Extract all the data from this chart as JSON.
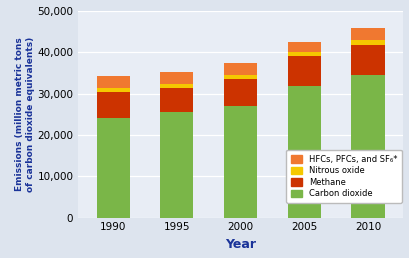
{
  "years": [
    "1990",
    "1995",
    "2000",
    "2005",
    "2010"
  ],
  "co2": [
    24200,
    25500,
    27000,
    31800,
    34500
  ],
  "methane": [
    6200,
    5800,
    6500,
    7200,
    7200
  ],
  "nitrous_oxide": [
    900,
    1000,
    1000,
    1100,
    1200
  ],
  "hfcs": [
    3000,
    3000,
    2800,
    2500,
    3000
  ],
  "colors": {
    "co2": "#7ab648",
    "methane": "#cc3300",
    "nitrous_oxide": "#f5c800",
    "hfcs": "#f07830"
  },
  "ylabel": "Emissions (million metric tons\nof carbon dioxide equivalents)",
  "xlabel": "Year",
  "ylim": [
    0,
    50000
  ],
  "yticks": [
    0,
    10000,
    20000,
    30000,
    40000,
    50000
  ],
  "ytick_labels": [
    "0",
    "10,000",
    "20,000",
    "30,000",
    "40,000",
    "50,000"
  ],
  "bg_color": "#dde4ee",
  "plot_bg": "#e8edf5",
  "title_color": "#1a3399",
  "grid_color": "#ffffff",
  "bar_width": 0.52,
  "figsize": [
    4.1,
    2.58
  ],
  "dpi": 100
}
